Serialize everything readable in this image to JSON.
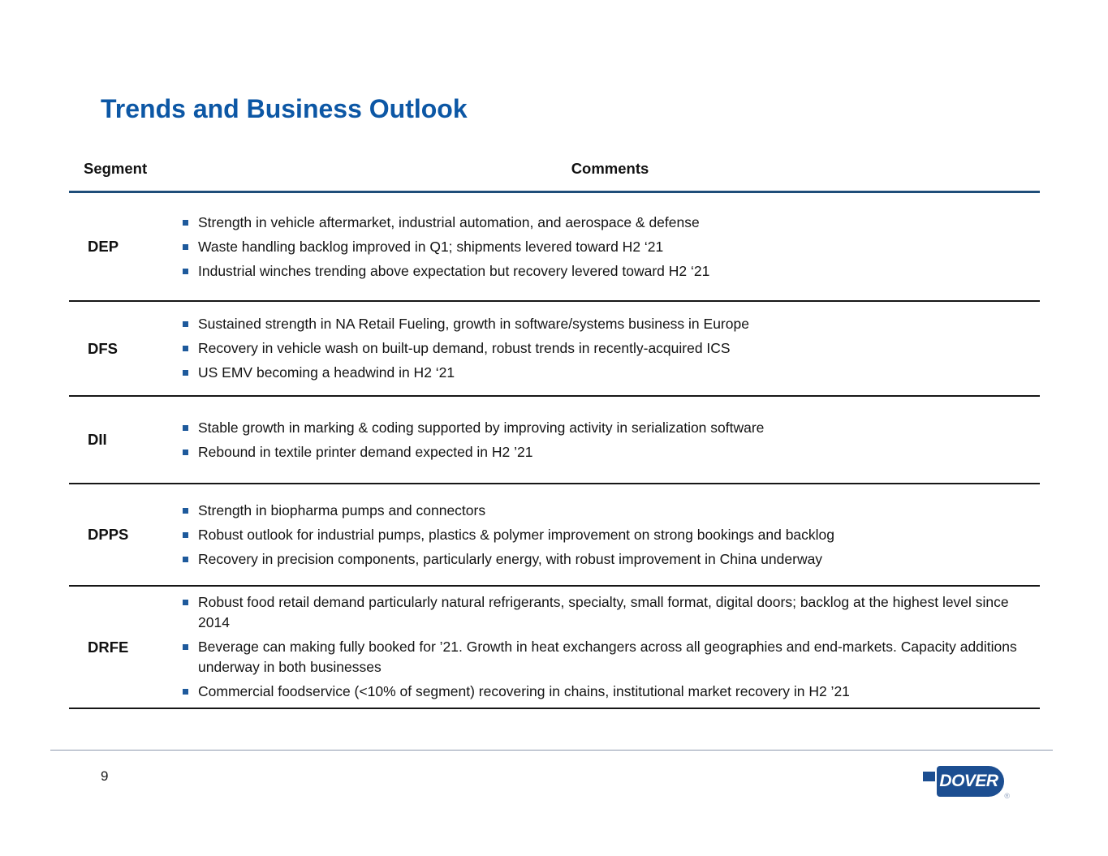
{
  "slide": {
    "title": "Trends and Business Outlook",
    "page_number": "9"
  },
  "table": {
    "headers": {
      "segment": "Segment",
      "comments": "Comments"
    },
    "rows": [
      {
        "segment": "DEP",
        "bullets": [
          "Strength in vehicle aftermarket, industrial automation, and aerospace & defense",
          "Waste handling backlog improved in Q1; shipments levered toward H2 ‘21",
          "Industrial winches trending above expectation but recovery levered toward H2 ‘21"
        ]
      },
      {
        "segment": "DFS",
        "bullets": [
          "Sustained strength in NA Retail Fueling, growth in software/systems business in Europe",
          "Recovery in vehicle wash on built-up demand, robust trends in recently-acquired ICS",
          "US EMV becoming a headwind in H2 ‘21"
        ]
      },
      {
        "segment": "DII",
        "bullets": [
          "Stable growth in marking & coding supported by improving activity in serialization software",
          "Rebound in textile printer demand expected in H2 ’21"
        ]
      },
      {
        "segment": "DPPS",
        "bullets": [
          "Strength in biopharma pumps and connectors",
          "Robust outlook for industrial pumps, plastics & polymer improvement on strong bookings and backlog",
          "Recovery in precision components, particularly energy, with robust improvement in China underway"
        ]
      },
      {
        "segment": "DRFE",
        "bullets": [
          "Robust food retail demand particularly natural refrigerants, specialty, small format, digital doors; backlog at the highest level since 2014",
          "Beverage can making fully booked for ’21. Growth in heat exchangers across all geographies and end-markets. Capacity additions underway in both businesses",
          "Commercial foodservice (<10% of segment) recovering in chains, institutional market recovery in H2 ’21"
        ]
      }
    ]
  },
  "footer": {
    "logo_text": "DOVER",
    "registered_mark": "®"
  },
  "colors": {
    "title_blue": "#0c57a5",
    "header_rule_blue": "#1f4e79",
    "bullet_blue": "#1e5a9c",
    "logo_blue": "#1c4e91",
    "footer_rule_gray": "#8d99ad",
    "text_black": "#141414"
  }
}
